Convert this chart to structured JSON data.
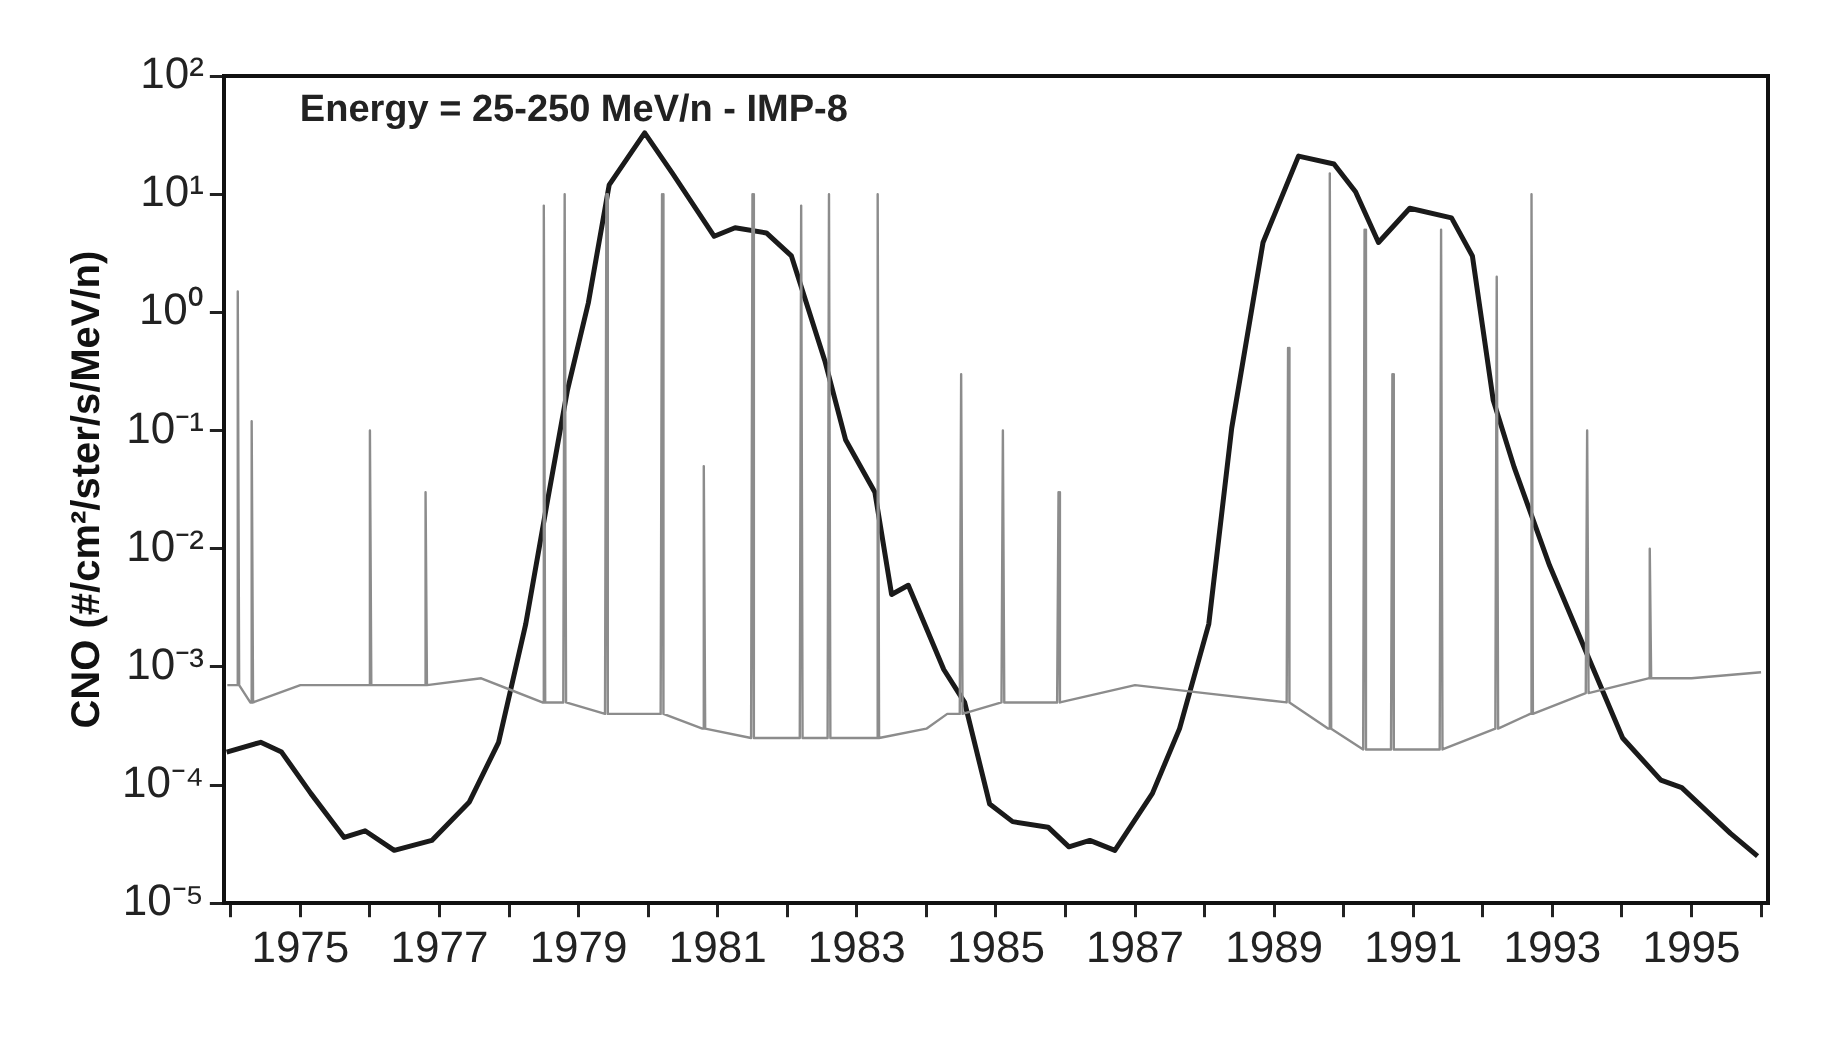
{
  "chart_data": {
    "type": "line",
    "ylabel": "CNO (#/cm²/ster/s/MeV/n)",
    "annotations": [
      "Energy = 25-250 MeV/n - IMP-8"
    ],
    "log": "y",
    "xlim": [
      1973.9,
      1996.1
    ],
    "ylim": [
      1e-05,
      100
    ],
    "xticks": [
      {
        "value": 1974,
        "label": null
      },
      1975,
      {
        "value": 1976,
        "label": null
      },
      1977,
      {
        "value": 1978,
        "label": null
      },
      1979,
      {
        "value": 1980,
        "label": null
      },
      1981,
      {
        "value": 1982,
        "label": null
      },
      1983,
      {
        "value": 1984,
        "label": null
      },
      1985,
      {
        "value": 1986,
        "label": null
      },
      1987,
      {
        "value": 1988,
        "label": null
      },
      1989,
      {
        "value": 1990,
        "label": null
      },
      1991,
      {
        "value": 1992,
        "label": null
      },
      1993,
      {
        "value": 1994,
        "label": null
      },
      1995,
      {
        "value": 1996,
        "label": null
      }
    ],
    "yticks": [
      {
        "value": 1e-05,
        "label": "10⁻⁵"
      },
      {
        "value": 0.0001,
        "label": "10⁻⁴"
      },
      {
        "value": 0.001,
        "label": "10⁻³"
      },
      {
        "value": 0.01,
        "label": "10⁻²"
      },
      {
        "value": 0.1,
        "label": "10⁻¹"
      },
      {
        "value": 1,
        "label": "10⁰"
      },
      {
        "value": 10,
        "label": "10¹"
      },
      {
        "value": 100,
        "label": "10²"
      }
    ],
    "marker": "none",
    "line_style": "solid",
    "series": [
      {
        "color": "#8c8c8c",
        "x": [
          1973.95,
          1974.08,
          1974.1,
          1974.12,
          1974.28,
          1974.3,
          1974.32,
          1975.0,
          1975.98,
          1976.0,
          1976.02,
          1976.78,
          1976.8,
          1976.82,
          1977.6,
          1978.48,
          1978.5,
          1978.52,
          1978.78,
          1978.8,
          1978.82,
          1979.38,
          1979.4,
          1979.42,
          1980.18,
          1980.2,
          1980.22,
          1980.78,
          1980.8,
          1980.82,
          1981.48,
          1981.5,
          1981.52,
          1982.18,
          1982.2,
          1982.22,
          1982.58,
          1982.6,
          1982.62,
          1983.28,
          1983.3,
          1983.32,
          1984.0,
          1984.3,
          1984.48,
          1984.5,
          1984.52,
          1985.08,
          1985.1,
          1985.12,
          1985.88,
          1985.9,
          1985.92,
          1987.0,
          1988.0,
          1989.18,
          1989.2,
          1989.22,
          1989.78,
          1989.8,
          1989.82,
          1990.28,
          1990.3,
          1990.32,
          1990.68,
          1990.7,
          1990.72,
          1991.38,
          1991.4,
          1991.42,
          1992.18,
          1992.2,
          1992.22,
          1992.68,
          1992.7,
          1992.72,
          1993.48,
          1993.5,
          1993.52,
          1994.38,
          1994.4,
          1994.42,
          1995.0,
          1996.0
        ],
        "values": [
          0.0007,
          0.0007,
          1.5,
          0.0007,
          0.0005,
          0.12,
          0.0005,
          0.0007,
          0.0007,
          0.1,
          0.0007,
          0.0007,
          0.03,
          0.0007,
          0.0008,
          0.0005,
          8,
          0.0005,
          0.0005,
          10,
          0.0005,
          0.0004,
          10,
          0.0004,
          0.0004,
          10,
          0.0004,
          0.0003,
          0.05,
          0.0003,
          0.00025,
          10,
          0.00025,
          0.00025,
          8,
          0.00025,
          0.00025,
          10,
          0.00025,
          0.00025,
          10,
          0.00025,
          0.0003,
          0.0004,
          0.0004,
          0.3,
          0.0004,
          0.0005,
          0.1,
          0.0005,
          0.0005,
          0.03,
          0.0005,
          0.0007,
          0.0006,
          0.0005,
          0.5,
          0.0005,
          0.0003,
          15,
          0.0003,
          0.0002,
          5,
          0.0002,
          0.0002,
          0.3,
          0.0002,
          0.0002,
          5,
          0.0002,
          0.0003,
          2,
          0.0003,
          0.0004,
          10,
          0.0004,
          0.0006,
          0.1,
          0.0006,
          0.0008,
          0.01,
          0.0008,
          0.0008,
          0.0009
        ]
      },
      {
        "color": "#1a1a1a",
        "x": [
          1973.94,
          1974.43,
          1974.73,
          1975.15,
          1975.63,
          1975.93,
          1976.35,
          1976.89,
          1977.43,
          1977.85,
          1978.24,
          1978.54,
          1978.84,
          1979.14,
          1979.44,
          1979.95,
          1980.35,
          1980.95,
          1981.25,
          1981.7,
          1982.06,
          1982.54,
          1982.84,
          1983.26,
          1983.5,
          1983.74,
          1984.25,
          1984.55,
          1984.91,
          1985.24,
          1985.75,
          1986.05,
          1986.35,
          1986.71,
          1987.25,
          1987.64,
          1988.06,
          1988.39,
          1988.84,
          1989.35,
          1989.86,
          1990.17,
          1990.5,
          1990.95,
          1991.55,
          1991.85,
          1992.15,
          1992.45,
          1992.96,
          1993.47,
          1994.01,
          1994.56,
          1994.86,
          1995.56,
          1995.95
        ],
        "values": [
          0.00019,
          0.00023,
          0.00019,
          8.5e-05,
          3.6e-05,
          4.1e-05,
          2.8e-05,
          3.4e-05,
          7.2e-05,
          0.00023,
          0.0023,
          0.023,
          0.22,
          1.2,
          12,
          33,
          15,
          4.4,
          5.2,
          4.7,
          3,
          0.39,
          0.083,
          0.03,
          0.0041,
          0.0049,
          0.00095,
          0.0005,
          6.9e-05,
          4.9e-05,
          4.4e-05,
          3e-05,
          3.4e-05,
          2.8e-05,
          8.5e-05,
          0.0003,
          0.0023,
          0.105,
          3.9,
          21,
          18,
          10.5,
          3.9,
          7.6,
          6.3,
          3,
          0.18,
          0.049,
          0.0072,
          0.0014,
          0.00025,
          0.00011,
          9.5e-05,
          3.9e-05,
          2.5e-05
        ]
      }
    ]
  }
}
